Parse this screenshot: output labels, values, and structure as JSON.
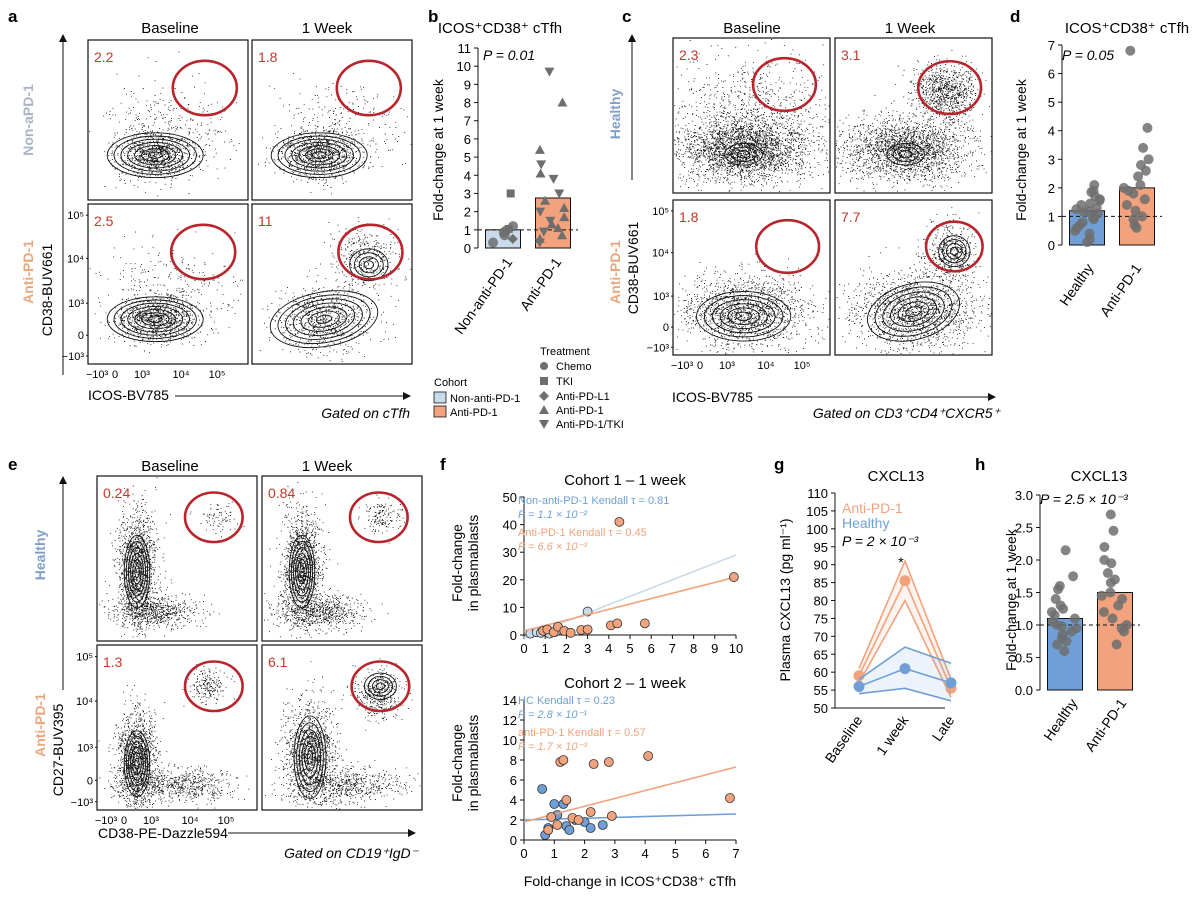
{
  "panels": {
    "a": {
      "letter": "a",
      "col_headers": [
        "Baseline",
        "1 Week"
      ],
      "row_labels": [
        "Non-aPD-1",
        "Anti-PD-1"
      ],
      "row_colors": [
        "#a9b4c8",
        "#e8a77f"
      ],
      "y_axis": "CD38-BUV661",
      "x_axis": "ICOS-BV785",
      "gated": "Gated on cTfh",
      "percents": [
        "2.2",
        "1.8",
        "2.5",
        "11"
      ],
      "x_ticks": [
        "−10³",
        "0",
        "10³",
        "10⁴",
        "10⁵"
      ],
      "y_ticks": [
        "10⁵",
        "10⁴",
        "10³",
        "0",
        "−10³"
      ]
    },
    "b": {
      "letter": "b",
      "title": "ICOS⁺CD38⁺ cTfh",
      "pvalue": "P = 0.01",
      "ylabel": "Fold-change at 1 week",
      "legend_cohort_title": "Cohort",
      "legend_cohort": [
        "Non-anti-PD-1",
        "Anti-PD-1"
      ],
      "legend_treatment_title": "Treatment",
      "legend_treatment": [
        "Chemo",
        "TKI",
        "Anti-PD-L1",
        "Anti-PD-1",
        "Anti-PD-1/TKI"
      ]
    },
    "c": {
      "letter": "c",
      "col_headers": [
        "Baseline",
        "1 Week"
      ],
      "row_labels": [
        "Healthy",
        "Anti-PD-1"
      ],
      "row_colors": [
        "#7f9fca",
        "#e8a77f"
      ],
      "y_axis": "CD38-BUV661",
      "x_axis": "ICOS-BV785",
      "gated": "Gated on CD3⁺CD4⁺CXCR5⁺",
      "percents": [
        "2.3",
        "3.1",
        "1.8",
        "7.7"
      ],
      "x_ticks": [
        "−10³",
        "0",
        "10³",
        "10⁴",
        "10⁵"
      ],
      "y_ticks": [
        "10⁵",
        "10⁴",
        "10³",
        "0",
        "−10³"
      ]
    },
    "d": {
      "letter": "d",
      "title": "ICOS⁺CD38⁺ cTfh",
      "pvalue": "P = 0.05",
      "ylabel": "Fold-change at 1 week"
    },
    "e": {
      "letter": "e",
      "col_headers": [
        "Baseline",
        "1 Week"
      ],
      "row_labels": [
        "Healthy",
        "Anti-PD-1"
      ],
      "row_colors": [
        "#7f9fca",
        "#e8a77f"
      ],
      "y_axis": "CD27-BUV395",
      "x_axis": "CD38-PE-Dazzle594",
      "gated": "Gated on CD19⁺IgD⁻",
      "percents": [
        "0.24",
        "0.84",
        "1.3",
        "6.1"
      ],
      "x_ticks": [
        "−10³",
        "0",
        "10³",
        "10⁴",
        "10⁵"
      ],
      "y_ticks": [
        "10⁵",
        "10⁴",
        "10³",
        "0",
        "−10³"
      ]
    },
    "f": {
      "letter": "f",
      "top_title": "Cohort 1 – 1 week",
      "bottom_title": "Cohort 2 – 1 week",
      "ylabel": [
        "Fold-change",
        "in plasmablasts"
      ],
      "xlabel": "Fold-change in ICOS⁺CD38⁺ cTfh",
      "top_stats": [
        "Non-anti-PD-1 Kendall τ = 0.81",
        "P = 1.1 × 10⁻²",
        "Anti-PD-1 Kendall τ = 0.45",
        "P = 6.6 × 10⁻³"
      ],
      "bottom_stats": [
        "HC Kendall τ = 0.23",
        "P = 2.8 × 10⁻¹",
        "anti-PD-1 Kendall τ = 0.57",
        "P = 1.7 × 10⁻³"
      ]
    },
    "g": {
      "letter": "g",
      "title": "CXCL13",
      "ylabel": "Plasma CXCL13 (pg ml⁻¹)",
      "legend": [
        "Anti-PD-1",
        "Healthy"
      ],
      "pvalue": "P = 2 × 10⁻³",
      "star": "*"
    },
    "h": {
      "letter": "h",
      "title": "CXCL13",
      "pvalue": "P = 2.5 × 10⁻³",
      "ylabel": "Fold-change at 1 week"
    }
  },
  "colors": {
    "healthy": "#6f9fd6",
    "anti_pd1": "#f2a27c",
    "non_anti_pd1": "#c9dbea",
    "gate": "#b8252d",
    "dots": "#6e6e6e"
  },
  "chart_data": [
    {
      "panel": "b",
      "type": "bar",
      "categories": [
        "Non-anti-PD-1",
        "Anti-PD-1"
      ],
      "values": [
        1.0,
        2.75
      ],
      "ylim": [
        0,
        11
      ],
      "yticks": [
        0,
        1,
        2,
        3,
        4,
        5,
        6,
        7,
        8,
        9,
        10,
        11
      ],
      "reference_line": 1,
      "points": [
        {
          "group": 0,
          "y": 3.0,
          "shape": "square"
        },
        {
          "group": 0,
          "y": 1.2,
          "shape": "circle"
        },
        {
          "group": 0,
          "y": 0.95,
          "shape": "circle"
        },
        {
          "group": 0,
          "y": 0.7,
          "shape": "circle"
        },
        {
          "group": 0,
          "y": 0.5,
          "shape": "diamond"
        },
        {
          "group": 0,
          "y": 0.3,
          "shape": "circle"
        },
        {
          "group": 0,
          "y": 1.05,
          "shape": "square"
        },
        {
          "group": 0,
          "y": 0.85,
          "shape": "circle"
        },
        {
          "group": 1,
          "y": 9.7,
          "shape": "down"
        },
        {
          "group": 1,
          "y": 8.0,
          "shape": "up"
        },
        {
          "group": 1,
          "y": 5.4,
          "shape": "up"
        },
        {
          "group": 1,
          "y": 4.6,
          "shape": "down"
        },
        {
          "group": 1,
          "y": 4.1,
          "shape": "up"
        },
        {
          "group": 1,
          "y": 3.8,
          "shape": "down"
        },
        {
          "group": 1,
          "y": 3.0,
          "shape": "down"
        },
        {
          "group": 1,
          "y": 2.6,
          "shape": "up"
        },
        {
          "group": 1,
          "y": 2.2,
          "shape": "up"
        },
        {
          "group": 1,
          "y": 2.0,
          "shape": "down"
        },
        {
          "group": 1,
          "y": 1.7,
          "shape": "up"
        },
        {
          "group": 1,
          "y": 1.5,
          "shape": "down"
        },
        {
          "group": 1,
          "y": 1.3,
          "shape": "up"
        },
        {
          "group": 1,
          "y": 1.1,
          "shape": "up"
        },
        {
          "group": 1,
          "y": 0.9,
          "shape": "down"
        },
        {
          "group": 1,
          "y": 0.7,
          "shape": "up"
        },
        {
          "group": 1,
          "y": 0.5,
          "shape": "up"
        },
        {
          "group": 1,
          "y": 0.3,
          "shape": "down"
        }
      ]
    },
    {
      "panel": "d",
      "type": "bar",
      "categories": [
        "Healthy",
        "Anti-PD-1"
      ],
      "values": [
        1.2,
        2.0
      ],
      "ylim": [
        0,
        7
      ],
      "yticks": [
        0,
        1,
        2,
        3,
        4,
        5,
        6,
        7
      ],
      "reference_line": 1,
      "points": [
        [
          0,
          2.1
        ],
        [
          0,
          1.9
        ],
        [
          0,
          1.85
        ],
        [
          0,
          1.7
        ],
        [
          0,
          1.6
        ],
        [
          0,
          1.55
        ],
        [
          0,
          1.45
        ],
        [
          0,
          1.4
        ],
        [
          0,
          1.3
        ],
        [
          0,
          1.25
        ],
        [
          0,
          1.2
        ],
        [
          0,
          1.15
        ],
        [
          0,
          1.1
        ],
        [
          0,
          1.0
        ],
        [
          0,
          0.95
        ],
        [
          0,
          0.9
        ],
        [
          0,
          0.8
        ],
        [
          0,
          0.7
        ],
        [
          0,
          0.6
        ],
        [
          0,
          0.5
        ],
        [
          0,
          0.4
        ],
        [
          0,
          0.2
        ],
        [
          0,
          0.1
        ],
        [
          1,
          6.8
        ],
        [
          1,
          4.1
        ],
        [
          1,
          3.4
        ],
        [
          1,
          3.0
        ],
        [
          1,
          2.8
        ],
        [
          1,
          2.6
        ],
        [
          1,
          2.4
        ],
        [
          1,
          2.1
        ],
        [
          1,
          2.0
        ],
        [
          1,
          1.9
        ],
        [
          1,
          1.8
        ],
        [
          1,
          1.6
        ],
        [
          1,
          1.4
        ],
        [
          1,
          1.2
        ],
        [
          1,
          1.0
        ],
        [
          1,
          0.9
        ],
        [
          1,
          0.7
        ],
        [
          1,
          0.6
        ]
      ]
    },
    {
      "panel": "f-top",
      "type": "scatter",
      "xlim": [
        0,
        10
      ],
      "ylim": [
        0,
        50
      ],
      "xticks": [
        0,
        1,
        2,
        3,
        4,
        5,
        6,
        7,
        8,
        9,
        10
      ],
      "yticks": [
        0,
        10,
        20,
        30,
        40,
        50
      ],
      "series": [
        {
          "name": "Non-anti-PD-1",
          "points": [
            [
              0.3,
              0.5
            ],
            [
              0.6,
              1
            ],
            [
              0.8,
              0.8
            ],
            [
              1.0,
              1.5
            ],
            [
              1.2,
              0.5
            ],
            [
              1.5,
              1.2
            ],
            [
              3.0,
              8.5
            ]
          ],
          "fit": [
            [
              0,
              -1
            ],
            [
              10,
              29
            ]
          ]
        },
        {
          "name": "Anti-PD-1",
          "points": [
            [
              0.9,
              1.5
            ],
            [
              1.1,
              2
            ],
            [
              1.4,
              1
            ],
            [
              1.6,
              3
            ],
            [
              1.9,
              1.5
            ],
            [
              2.2,
              0.8
            ],
            [
              2.7,
              1.8
            ],
            [
              3.0,
              2.0
            ],
            [
              4.1,
              3.5
            ],
            [
              4.4,
              4.2
            ],
            [
              4.5,
              41
            ],
            [
              5.7,
              4.2
            ],
            [
              9.9,
              21
            ]
          ],
          "fit": [
            [
              0,
              1.5
            ],
            [
              10,
              21
            ]
          ]
        }
      ]
    },
    {
      "panel": "f-bottom",
      "type": "scatter",
      "xlim": [
        0,
        7
      ],
      "ylim": [
        0,
        14
      ],
      "xticks": [
        0,
        1,
        2,
        3,
        4,
        5,
        6,
        7
      ],
      "yticks": [
        0,
        2,
        4,
        6,
        8,
        10,
        12,
        14
      ],
      "series": [
        {
          "name": "HC",
          "points": [
            [
              0.6,
              5.1
            ],
            [
              0.7,
              0.5
            ],
            [
              0.8,
              1.2
            ],
            [
              1.0,
              3.6
            ],
            [
              1.1,
              2.5
            ],
            [
              1.3,
              3.6
            ],
            [
              1.4,
              1.4
            ],
            [
              1.5,
              1.0
            ],
            [
              1.7,
              2.0
            ],
            [
              2.0,
              1.8
            ],
            [
              2.2,
              1.2
            ],
            [
              2.6,
              1.5
            ]
          ],
          "fit": [
            [
              0,
              2.0
            ],
            [
              7,
              2.6
            ]
          ]
        },
        {
          "name": "anti-PD-1",
          "points": [
            [
              0.8,
              1.0
            ],
            [
              0.9,
              2.3
            ],
            [
              1.1,
              1.5
            ],
            [
              1.2,
              7.8
            ],
            [
              1.3,
              8.0
            ],
            [
              1.4,
              4.0
            ],
            [
              1.6,
              2.2
            ],
            [
              1.8,
              2.0
            ],
            [
              2.2,
              2.8
            ],
            [
              2.3,
              7.6
            ],
            [
              2.8,
              7.8
            ],
            [
              2.9,
              2.4
            ],
            [
              4.1,
              8.4
            ],
            [
              6.8,
              4.2
            ]
          ],
          "fit": [
            [
              0,
              1.8
            ],
            [
              7,
              7.3
            ]
          ]
        }
      ]
    },
    {
      "panel": "g",
      "type": "line",
      "categories": [
        "Baseline",
        "1 week",
        "Late"
      ],
      "ylim": [
        50,
        110
      ],
      "yticks": [
        50,
        55,
        60,
        65,
        70,
        75,
        80,
        85,
        90,
        95,
        100,
        105,
        110
      ],
      "series": [
        {
          "name": "Anti-PD-1",
          "values": [
            59,
            85.5,
            55.5
          ],
          "upper": [
            61,
            91,
            58
          ],
          "lower": [
            57,
            80,
            53
          ]
        },
        {
          "name": "Healthy",
          "values": [
            56,
            61,
            57
          ],
          "upper": [
            58,
            67,
            62.5
          ],
          "lower": [
            54,
            55.5,
            52
          ]
        }
      ]
    },
    {
      "panel": "h",
      "type": "bar",
      "categories": [
        "Healthy",
        "Anti-PD-1"
      ],
      "values": [
        1.1,
        1.5
      ],
      "ylim": [
        0,
        3
      ],
      "yticks": [
        0,
        0.5,
        1.0,
        1.5,
        2.0,
        2.5,
        3.0
      ],
      "reference_line": 1,
      "points": [
        [
          0,
          2.15
        ],
        [
          0,
          1.75
        ],
        [
          0,
          1.6
        ],
        [
          0,
          1.55
        ],
        [
          0,
          1.4
        ],
        [
          0,
          1.3
        ],
        [
          0,
          1.25
        ],
        [
          0,
          1.2
        ],
        [
          0,
          1.15
        ],
        [
          0,
          1.1
        ],
        [
          0,
          1.05
        ],
        [
          0,
          1.0
        ],
        [
          0,
          0.98
        ],
        [
          0,
          0.95
        ],
        [
          0,
          0.9
        ],
        [
          0,
          0.85
        ],
        [
          0,
          0.8
        ],
        [
          0,
          0.75
        ],
        [
          0,
          0.7
        ],
        [
          0,
          0.6
        ],
        [
          1,
          2.7
        ],
        [
          1,
          2.45
        ],
        [
          1,
          2.2
        ],
        [
          1,
          2.0
        ],
        [
          1,
          1.95
        ],
        [
          1,
          1.8
        ],
        [
          1,
          1.7
        ],
        [
          1,
          1.65
        ],
        [
          1,
          1.5
        ],
        [
          1,
          1.45
        ],
        [
          1,
          1.4
        ],
        [
          1,
          1.3
        ],
        [
          1,
          1.2
        ],
        [
          1,
          1.1
        ],
        [
          1,
          1.0
        ],
        [
          1,
          0.95
        ],
        [
          1,
          0.9
        ],
        [
          1,
          0.7
        ]
      ]
    }
  ]
}
